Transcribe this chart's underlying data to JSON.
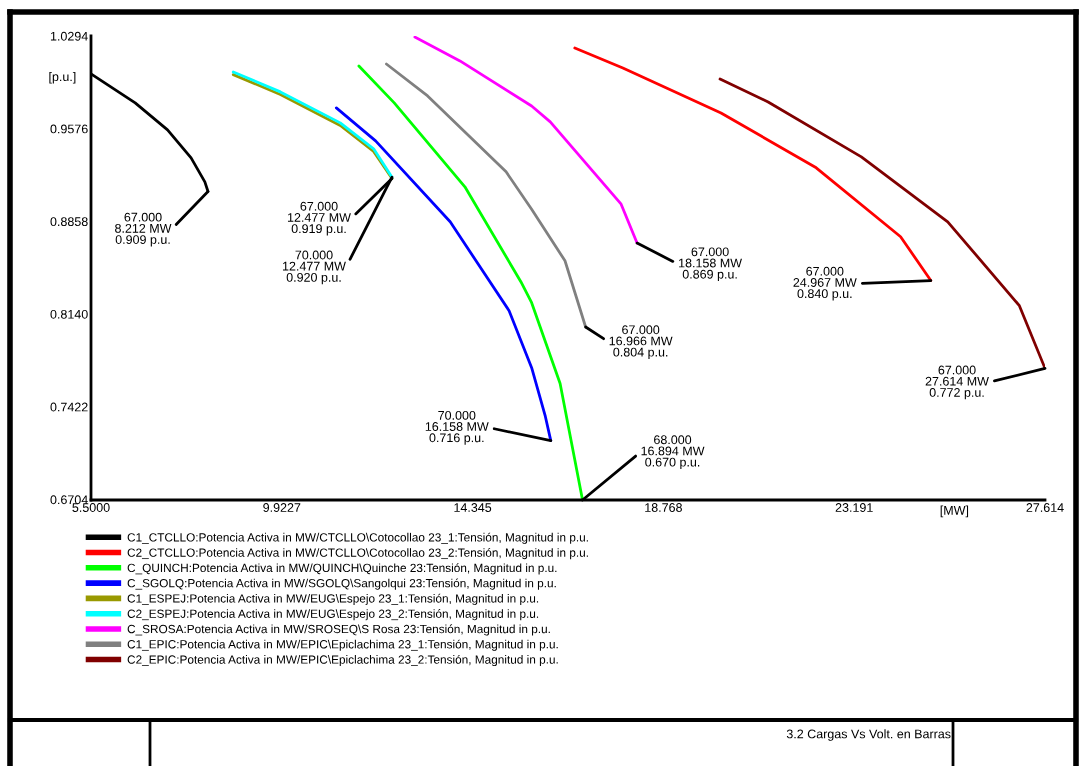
{
  "chart_data": {
    "type": "line",
    "title": "3.2 Cargas Vs Volt. en Barras",
    "xlabel": "[MW]",
    "ylabel": "[p.u.]",
    "xlim": [
      5.5,
      27.614
    ],
    "ylim": [
      0.67,
      1.0294
    ],
    "xticks": [
      {
        "value": 5.5,
        "label": "5.5000"
      },
      9.9227,
      14.345,
      18.768,
      23.191,
      27.614
    ],
    "yticks": [
      0.6704,
      0.7422,
      {
        "value": 0.814,
        "label": "0.8140"
      },
      0.8858,
      0.9576,
      1.0294
    ],
    "grid": false,
    "legend": "bottom",
    "marker": "none",
    "line_style": "solid",
    "series": [
      {
        "name": "C1_CTCLLO:Potencia Activa in MW/CTCLLO\\Cotocollao 23_1:Tensión, Magnitud in p.u.",
        "color": "#000000",
        "x": [
          5.5,
          6.524,
          7.274,
          7.82,
          8.139,
          8.212
        ],
        "values": [
          1.0,
          0.9776,
          0.9567,
          0.935,
          0.9164,
          0.909
        ]
      },
      {
        "name": "C2_CTCLLO:Potencia Activa in MW/CTCLLO\\Cotocollao 23_2:Tensión, Magnitud in p.u.",
        "color": "#ff0000",
        "x": [
          16.715,
          17.829,
          20.104,
          22.311,
          24.267,
          24.967
        ],
        "values": [
          1.0201,
          1.0046,
          0.9698,
          0.9273,
          0.8739,
          0.84
        ]
      },
      {
        "name": "C_QUINCH:Potencia Activa in MW/QUINCH\\Quinche 23:Tensión, Magnitud in p.u.",
        "color": "#00ff00",
        "x": [
          11.71,
          12.529,
          14.167,
          15.464,
          15.714,
          16.374,
          16.894
        ],
        "values": [
          1.0062,
          0.9776,
          0.9126,
          0.8391,
          0.8228,
          0.7602,
          0.67
        ]
      },
      {
        "name": "C_SGOLQ:Potencia Activa in MW/SGOLQ\\Sangolqui 23:Tensión, Magnitud in p.u.",
        "color": "#0000ff",
        "x": [
          11.187,
          12.097,
          13.826,
          15.191,
          15.714,
          16.032,
          16.158
        ],
        "values": [
          0.9737,
          0.9482,
          0.8855,
          0.8166,
          0.7725,
          0.7347,
          0.716
        ]
      },
      {
        "name": "C1_ESPEJ:Potencia Activa in MW/EUG\\Espejo 23_1:Tensión, Magnitud in p.u.",
        "color": "#999900",
        "x": [
          8.798,
          9.89,
          11.278,
          12.051,
          12.477
        ],
        "values": [
          0.9995,
          0.9841,
          0.9601,
          0.94,
          0.919
        ]
      },
      {
        "name": "C2_ESPEJ:Potencia Activa in MW/EUG\\Espejo 23_2:Tensión, Magnitud in p.u.",
        "color": "#00ffff",
        "x": [
          8.798,
          9.89,
          11.278,
          12.051,
          12.477
        ],
        "values": [
          1.0015,
          0.9861,
          0.9621,
          0.942,
          0.92
        ]
      },
      {
        "name": "C_SROSA:Potencia Activa in MW/SROSEQ\\S Rosa 23:Tensión, Magnitud in p.u.",
        "color": "#ff00ff",
        "x": [
          13.007,
          14.053,
          15.714,
          16.146,
          17.784,
          18.158
        ],
        "values": [
          1.0286,
          1.0101,
          0.9752,
          0.9629,
          0.8994,
          0.869
        ]
      },
      {
        "name": "C1_EPIC:Potencia Activa in MW/EPIC\\Epiclachima 23_1:Tensión, Magnitud in p.u.",
        "color": "#808080",
        "x": [
          12.347,
          13.303,
          15.122,
          15.714,
          16.487,
          16.966
        ],
        "values": [
          1.0077,
          0.983,
          0.9242,
          0.8952,
          0.8553,
          0.804
        ]
      },
      {
        "name": "C2_EPIC:Potencia Activa in MW/EPIC\\Epiclachima 23_2:Tensión, Magnitud in p.u.",
        "color": "#800000",
        "x": [
          20.081,
          21.196,
          23.357,
          25.359,
          27.02,
          27.614
        ],
        "values": [
          0.9961,
          0.9783,
          0.9358,
          0.8855,
          0.8205,
          0.772
        ]
      }
    ],
    "annotations": [
      {
        "text": "67.000\n8.212 MW\n0.909 p.u.",
        "x": 8.212,
        "y": 0.909
      },
      {
        "text": "67.000\n12.477 MW\n0.919 p.u.",
        "x": 12.477,
        "y": 0.919
      },
      {
        "text": "70.000\n12.477 MW\n0.920 p.u.",
        "x": 12.477,
        "y": 0.92
      },
      {
        "text": "70.000\n16.158 MW\n0.716 p.u.",
        "x": 16.158,
        "y": 0.716
      },
      {
        "text": "68.000\n16.894 MW\n0.670 p.u.",
        "x": 16.894,
        "y": 0.67
      },
      {
        "text": "67.000\n16.966 MW\n0.804 p.u.",
        "x": 16.966,
        "y": 0.804
      },
      {
        "text": "67.000\n18.158 MW\n0.869 p.u.",
        "x": 18.158,
        "y": 0.869
      },
      {
        "text": "67.000\n24.967 MW\n0.840 p.u.",
        "x": 24.967,
        "y": 0.84
      },
      {
        "text": "67.000\n27.614 MW\n0.772 p.u.",
        "x": 27.614,
        "y": 0.772
      }
    ]
  }
}
